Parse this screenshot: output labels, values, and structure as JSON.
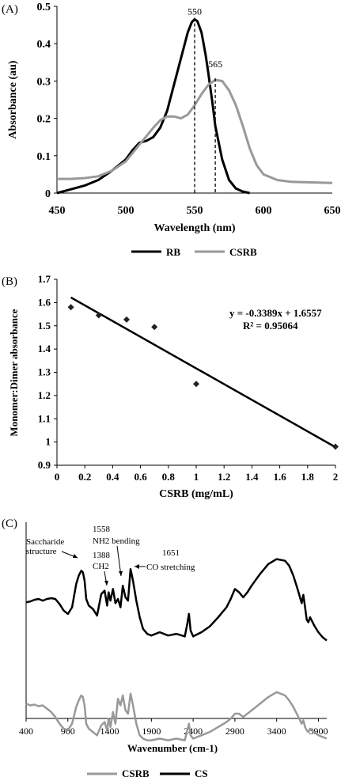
{
  "panels": [
    {
      "label": "(A)",
      "chart_data": {
        "type": "line",
        "xlabel": "Wavelength (nm)",
        "ylabel": "Absorbance (au)",
        "xlim": [
          450,
          650
        ],
        "ylim": [
          0,
          0.5
        ],
        "xticks": [
          450,
          500,
          550,
          600,
          650
        ],
        "yticks": [
          0,
          0.1,
          0.2,
          0.3,
          0.4,
          0.5
        ],
        "grid": false,
        "legend": "bottom",
        "series": [
          {
            "name": "RB",
            "color": "#000000",
            "x": [
              450,
              460,
              470,
              480,
              490,
              500,
              505,
              510,
              515,
              520,
              525,
              530,
              535,
              540,
              545,
              548,
              550,
              552,
              555,
              558,
              560,
              563,
              565,
              570,
              575,
              580,
              585,
              590
            ],
            "y": [
              0.0,
              0.01,
              0.02,
              0.035,
              0.06,
              0.09,
              0.115,
              0.135,
              0.14,
              0.15,
              0.175,
              0.22,
              0.29,
              0.36,
              0.43,
              0.458,
              0.465,
              0.46,
              0.43,
              0.37,
              0.32,
              0.24,
              0.18,
              0.09,
              0.035,
              0.012,
              0.004,
              0.0
            ]
          },
          {
            "name": "CSRB",
            "color": "#999999",
            "x": [
              450,
              460,
              470,
              480,
              490,
              500,
              510,
              520,
              525,
              530,
              535,
              540,
              545,
              550,
              555,
              560,
              565,
              570,
              575,
              580,
              585,
              590,
              595,
              600,
              610,
              620,
              630,
              640,
              650
            ],
            "y": [
              0.038,
              0.038,
              0.04,
              0.045,
              0.06,
              0.085,
              0.13,
              0.175,
              0.195,
              0.205,
              0.205,
              0.2,
              0.21,
              0.235,
              0.265,
              0.29,
              0.303,
              0.3,
              0.275,
              0.235,
              0.18,
              0.12,
              0.075,
              0.05,
              0.035,
              0.03,
              0.029,
              0.028,
              0.027
            ]
          }
        ],
        "annotations": [
          {
            "text": "550",
            "x": 550
          },
          {
            "text": "565",
            "x": 565
          }
        ]
      }
    },
    {
      "label": "(B)",
      "chart_data": {
        "type": "scatter",
        "xlabel": "CSRB (mg/mL)",
        "ylabel": "Monomer:Dimer absorbance",
        "xlim": [
          0,
          2
        ],
        "ylim": [
          0.9,
          1.7
        ],
        "xticks": [
          "0",
          "0.2",
          "0.4",
          "0.6",
          "0.8",
          "1",
          "1.2",
          "1.4",
          "1.6",
          "1.8",
          "2"
        ],
        "yticks": [
          "0.9",
          "1",
          "1.1",
          "1.2",
          "1.3",
          "1.4",
          "1.5",
          "1.6",
          "1.7"
        ],
        "grid": false,
        "points": {
          "x": [
            0.1,
            0.3,
            0.5,
            0.7,
            1.0,
            2.0
          ],
          "y": [
            1.58,
            1.545,
            1.527,
            1.495,
            1.25,
            0.98
          ]
        },
        "trendline": {
          "slope": -0.3389,
          "intercept": 1.6557,
          "x": [
            0.1,
            2.0
          ]
        },
        "equation": "y = -0.3389x + 1.6557",
        "r2": "R² = 0.95064"
      }
    },
    {
      "label": "(C)",
      "chart_data": {
        "type": "line",
        "xlabel": "Wavenumber (cm-1)",
        "xlim": [
          400,
          4000
        ],
        "xticks": [
          400,
          900,
          1400,
          1900,
          2400,
          2900,
          3400,
          3900
        ],
        "grid": false,
        "legend": "bottom",
        "series": [
          {
            "name": "CS",
            "color": "#000000",
            "x": [
              400,
              450,
              500,
              550,
              600,
              650,
              700,
              750,
              800,
              850,
              900,
              950,
              1000,
              1030,
              1060,
              1080,
              1100,
              1120,
              1150,
              1200,
              1250,
              1300,
              1340,
              1370,
              1388,
              1410,
              1440,
              1470,
              1500,
              1530,
              1558,
              1590,
              1620,
              1651,
              1680,
              1720,
              1760,
              1800,
              1850,
              1900,
              2000,
              2100,
              2200,
              2300,
              2330,
              2350,
              2370,
              2400,
              2500,
              2600,
              2700,
              2800,
              2850,
              2900,
              2950,
              3000,
              3050,
              3100,
              3200,
              3300,
              3400,
              3500,
              3550,
              3600,
              3650,
              3700,
              3720,
              3740,
              3760,
              3780,
              3800,
              3850,
              3900,
              3950,
              4000
            ],
            "y": [
              56,
              57,
              59,
              60,
              58,
              60,
              61,
              60,
              54,
              46,
              42,
              50,
              78,
              88,
              94,
              92,
              82,
              60,
              52,
              48,
              40,
              66,
              70,
              52,
              68,
              58,
              72,
              55,
              60,
              50,
              76,
              62,
              58,
              96,
              82,
              58,
              38,
              24,
              18,
              16,
              20,
              16,
              18,
              15,
              30,
              42,
              22,
              15,
              20,
              27,
              38,
              50,
              60,
              72,
              68,
              62,
              68,
              76,
              90,
              102,
              108,
              106,
              100,
              88,
              72,
              55,
              65,
              50,
              35,
              32,
              38,
              28,
              20,
              14,
              10
            ]
          },
          {
            "name": "CSRB",
            "color": "#999999",
            "x": [
              400,
              450,
              500,
              550,
              600,
              650,
              700,
              750,
              800,
              850,
              900,
              950,
              1000,
              1030,
              1060,
              1080,
              1100,
              1120,
              1150,
              1200,
              1250,
              1300,
              1340,
              1370,
              1388,
              1410,
              1440,
              1470,
              1500,
              1530,
              1558,
              1590,
              1620,
              1651,
              1680,
              1720,
              1760,
              1800,
              1850,
              1900,
              2000,
              2100,
              2200,
              2300,
              2330,
              2350,
              2370,
              2400,
              2500,
              2600,
              2700,
              2800,
              2850,
              2900,
              2950,
              3000,
              3050,
              3100,
              3200,
              3300,
              3400,
              3500,
              3550,
              3600,
              3650,
              3700,
              3720,
              3740,
              3760,
              3780,
              3800,
              3850,
              3900,
              3950,
              4000
            ],
            "y": [
              -28,
              -30,
              -29,
              -31,
              -30,
              -34,
              -38,
              -44,
              -52,
              -58,
              -60,
              -52,
              -32,
              -24,
              -18,
              -20,
              -30,
              -52,
              -58,
              -62,
              -66,
              -54,
              -50,
              -60,
              -46,
              -56,
              -38,
              -52,
              -22,
              -30,
              -18,
              -36,
              -40,
              -16,
              -30,
              -52,
              -66,
              -70,
              -72,
              -72,
              -70,
              -72,
              -70,
              -72,
              -60,
              -52,
              -66,
              -70,
              -66,
              -62,
              -56,
              -50,
              -46,
              -40,
              -40,
              -44,
              -40,
              -36,
              -28,
              -20,
              -14,
              -18,
              -24,
              -32,
              -42,
              -52,
              -48,
              -56,
              -60,
              -62,
              -58,
              -62,
              -66,
              -68,
              -70
            ]
          }
        ],
        "annotations": [
          {
            "text": "Saccharide",
            "x": 1080
          },
          {
            "text": "structure",
            "x": 1080
          },
          {
            "text": "1558",
            "x": 1558
          },
          {
            "text": "NH2 bending",
            "x": 1558
          },
          {
            "text": "1388",
            "x": 1388
          },
          {
            "text": "CH2",
            "x": 1388
          },
          {
            "text": "1651",
            "x": 1651
          },
          {
            "text": "CO stretching",
            "x": 1651
          }
        ]
      }
    }
  ]
}
